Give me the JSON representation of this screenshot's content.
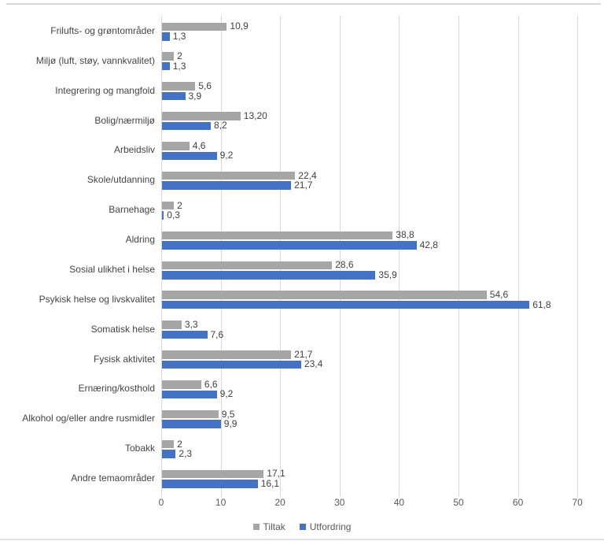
{
  "chart_data": {
    "type": "bar",
    "orientation": "horizontal",
    "title": "",
    "categories": [
      "Frilufts- og grøntområder",
      "Miljø (luft, støy, vannkvalitet)",
      "Integrering og mangfold",
      "Bolig/nærmiljø",
      "Arbeidsliv",
      "Skole/utdanning",
      "Barnehage",
      "Aldring",
      "Sosial ulikhet i helse",
      "Psykisk helse og livskvalitet",
      "Somatisk helse",
      "Fysisk aktivitet",
      "Ernæring/kosthold",
      "Alkohol og/eller andre rusmidler",
      "Tobakk",
      "Andre temaområder"
    ],
    "series": [
      {
        "name": "Tiltak",
        "color": "#a6a6a6",
        "values": [
          10.9,
          2,
          5.6,
          13.2,
          4.6,
          22.4,
          2,
          38.8,
          28.6,
          54.6,
          3.3,
          21.7,
          6.6,
          9.5,
          2,
          17.1
        ],
        "labels": [
          "10,9",
          "2",
          "5,6",
          "13,20",
          "4,6",
          "22,4",
          "2",
          "38,8",
          "28,6",
          "54,6",
          "3,3",
          "21,7",
          "6,6",
          "9,5",
          "2",
          "17,1"
        ]
      },
      {
        "name": "Utfordring",
        "color": "#4472c4",
        "values": [
          1.3,
          1.3,
          3.9,
          8.2,
          9.2,
          21.7,
          0.3,
          42.8,
          35.9,
          61.8,
          7.6,
          23.4,
          9.2,
          9.9,
          2.3,
          16.1
        ],
        "labels": [
          "1,3",
          "1,3",
          "3,9",
          "8,2",
          "9,2",
          "21,7",
          "0,3",
          "42,8",
          "35,9",
          "61,8",
          "7,6",
          "23,4",
          "9,2",
          "9,9",
          "2,3",
          "16,1"
        ]
      }
    ],
    "x_axis": {
      "min": 0,
      "max": 70,
      "ticks": [
        0,
        10,
        20,
        30,
        40,
        50,
        60,
        70
      ]
    },
    "gridlines": true,
    "legend_position": "bottom"
  },
  "colors": {
    "gridline": "#d9d9d9",
    "tick_label": "#595959",
    "category_label": "#444444",
    "value_label": "#404040",
    "divider": "#d9d9d9"
  }
}
